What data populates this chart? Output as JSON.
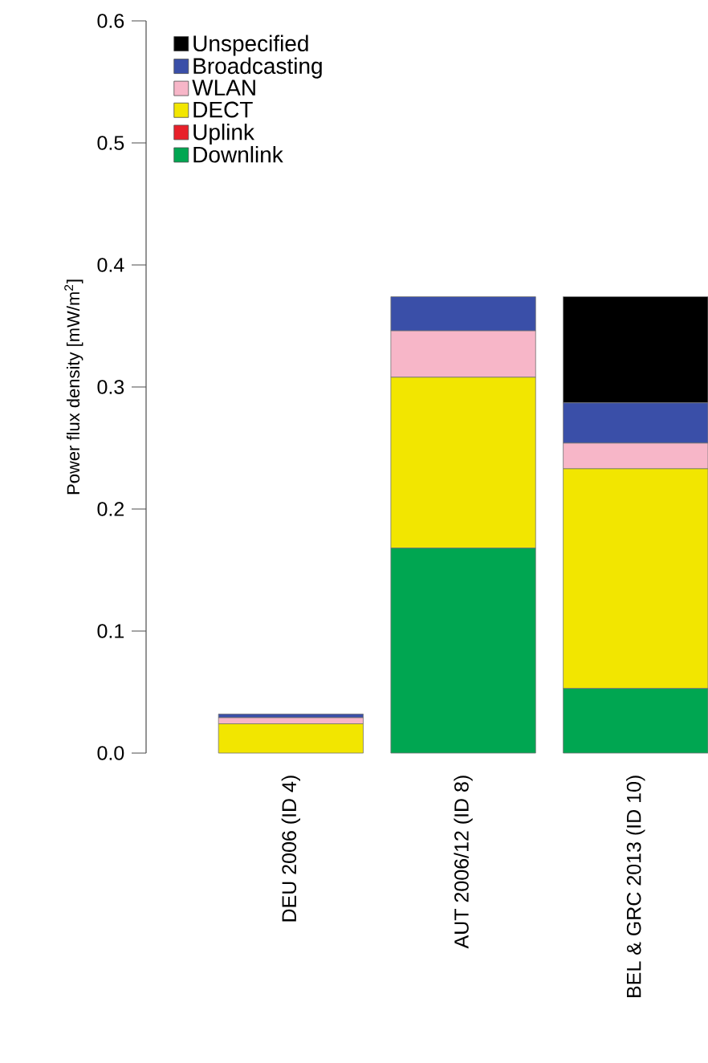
{
  "chart_data": {
    "type": "bar",
    "stacked": true,
    "ylabel": "Power flux density [mW/m$^{2}$]",
    "categories": [
      "DEU 2006 (ID 4)",
      "AUT 2006/12 (ID 8)",
      "BEL & GRC 2013 (ID 10)"
    ],
    "series": [
      {
        "name": "Downlink",
        "color": "#00a651",
        "values": [
          null,
          0.168,
          0.053
        ]
      },
      {
        "name": "Uplink",
        "color": "#e8202a",
        "values": [
          0,
          0,
          0
        ]
      },
      {
        "name": "DECT",
        "color": "#f2e600",
        "values": [
          0.024,
          0.14,
          0.18
        ]
      },
      {
        "name": "WLAN",
        "color": "#f7b6c8",
        "values": [
          0.005,
          0.038,
          0.021
        ]
      },
      {
        "name": "Broadcasting",
        "color": "#3a4fa8",
        "values": [
          0.003,
          0.028,
          0.033
        ]
      },
      {
        "name": "Unspecified",
        "color": "#000000",
        "values": [
          0,
          0,
          0.087
        ]
      }
    ],
    "ylim": [
      0,
      0.6
    ],
    "yticks": [
      {
        "value": 0,
        "label": "0.0"
      },
      0.1,
      0.2,
      0.3,
      0.4,
      0.5,
      0.6
    ],
    "legend": "top left",
    "grid": false
  }
}
